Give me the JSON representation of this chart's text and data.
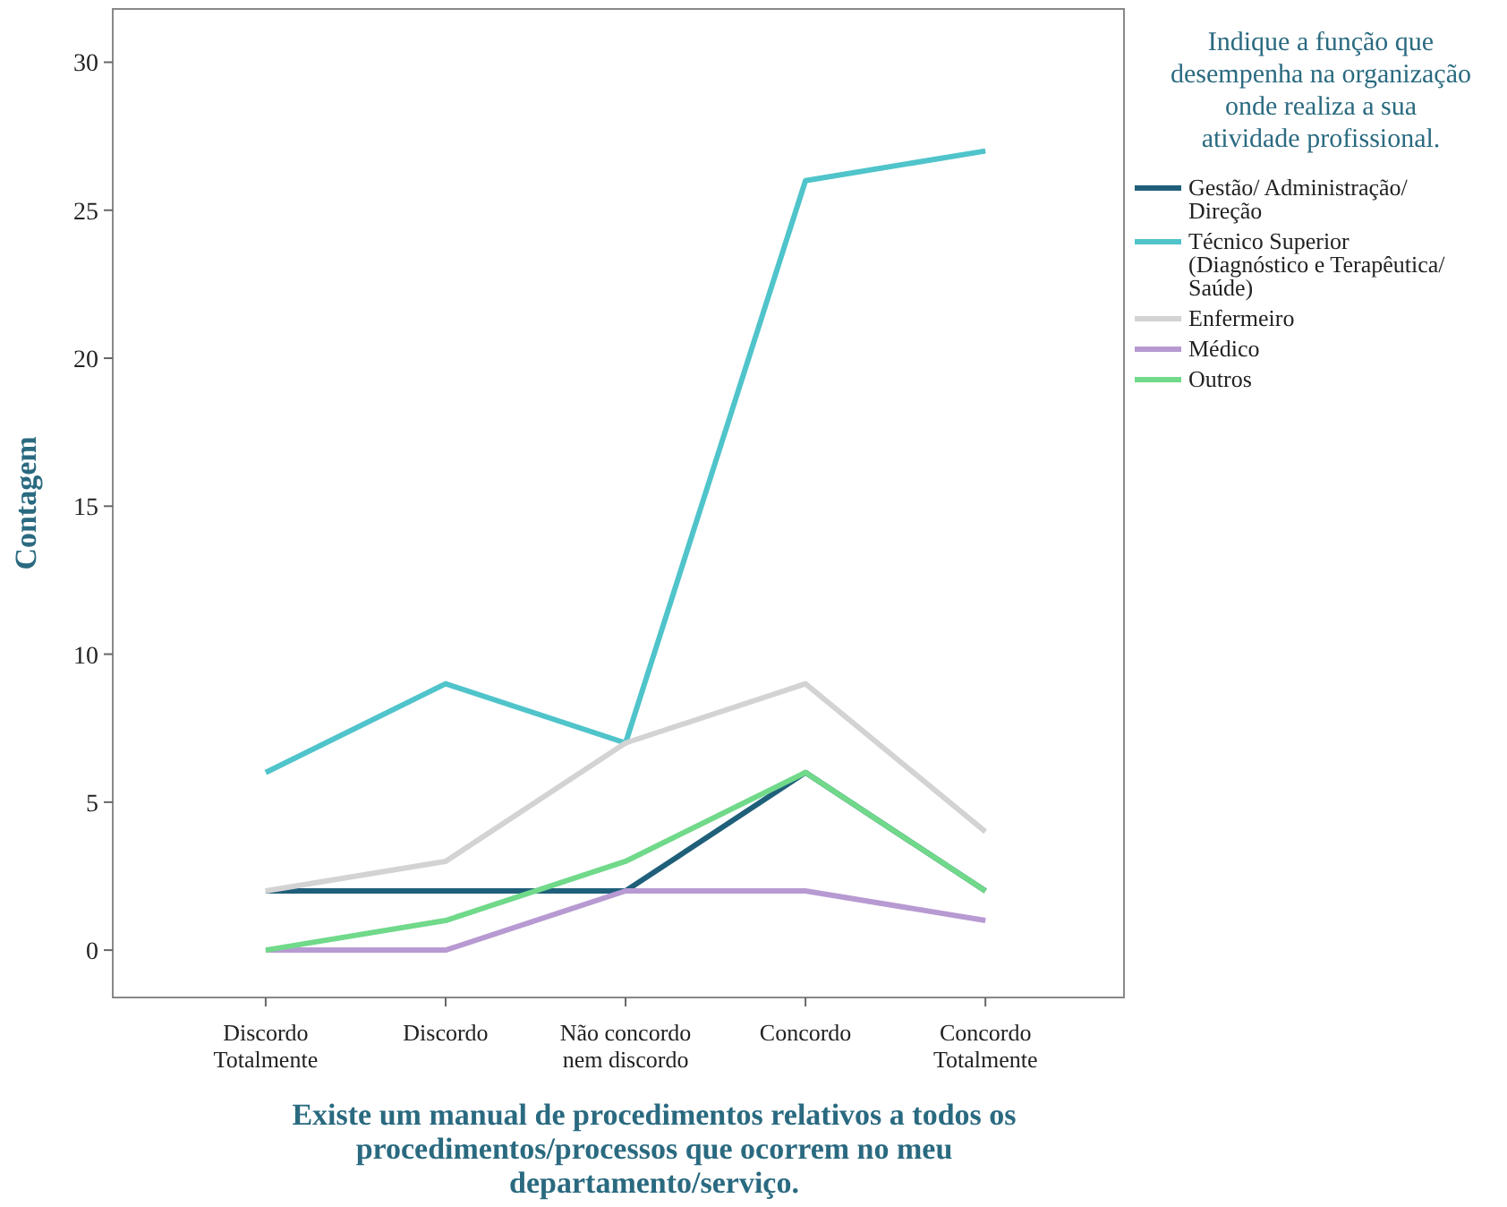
{
  "chart_data": {
    "type": "line",
    "xlabel": "Existe um manual de procedimentos relativos a todos os procedimentos/processos que ocorrem no meu departamento/serviço.",
    "ylabel": "Contagem",
    "legend_title": "Indique a função que desempenha na organização onde realiza a sua atividade profissional.",
    "categories": [
      "Discordo Totalmente",
      "Discordo",
      "Não concordo nem discordo",
      "Concordo",
      "Concordo Totalmente"
    ],
    "series": [
      {
        "name": "Gestão/ Administração/ Direção",
        "color": "#1f5f7a",
        "values": [
          2,
          2,
          2,
          6,
          2
        ]
      },
      {
        "name": "Técnico Superior (Diagnóstico e Terapêutica/ Saúde)",
        "color": "#4fc4ca",
        "values": [
          6,
          9,
          7,
          26,
          27
        ]
      },
      {
        "name": "Enfermeiro",
        "color": "#d3d3d3",
        "values": [
          2,
          3,
          7,
          9,
          4
        ]
      },
      {
        "name": "Médico",
        "color": "#b89ad2",
        "values": [
          0,
          0,
          2,
          2,
          1
        ]
      },
      {
        "name": "Outros",
        "color": "#70d98a",
        "values": [
          0,
          1,
          3,
          6,
          2
        ]
      }
    ],
    "ylim": [
      -1.6,
      31.8
    ],
    "yticks": [
      0,
      5,
      10,
      15,
      20,
      25,
      30
    ],
    "grid": false,
    "legend": "right",
    "marker": "none",
    "line_style": "solid"
  }
}
